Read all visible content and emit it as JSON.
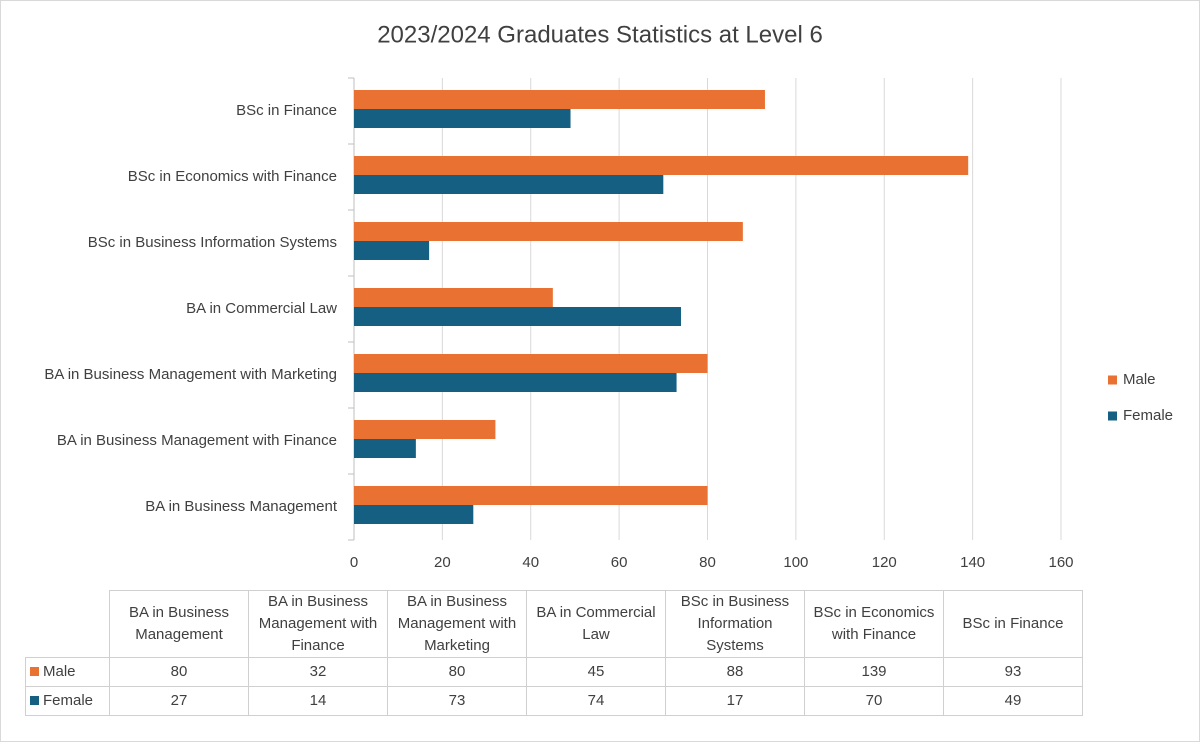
{
  "chart_data": {
    "type": "bar",
    "orientation": "horizontal",
    "title": "2023/2024 Graduates Statistics at Level 6",
    "categories": [
      "BA in Business Management",
      "BA in Business Management with Finance",
      "BA in Business Management with Marketing",
      "BA in Commercial Law",
      "BSc in Business Information Systems",
      "BSc in Economics with Finance",
      "BSc in Finance"
    ],
    "series": [
      {
        "name": "Male",
        "color": "#e97132",
        "values": [
          80,
          32,
          80,
          45,
          88,
          139,
          93
        ]
      },
      {
        "name": "Female",
        "color": "#156082",
        "values": [
          27,
          14,
          73,
          74,
          17,
          70,
          49
        ]
      }
    ],
    "xlim": [
      0,
      160
    ],
    "xticks": [
      0,
      20,
      40,
      60,
      80,
      100,
      120,
      140,
      160
    ],
    "grid": true,
    "legend": "right",
    "data_table": true
  }
}
